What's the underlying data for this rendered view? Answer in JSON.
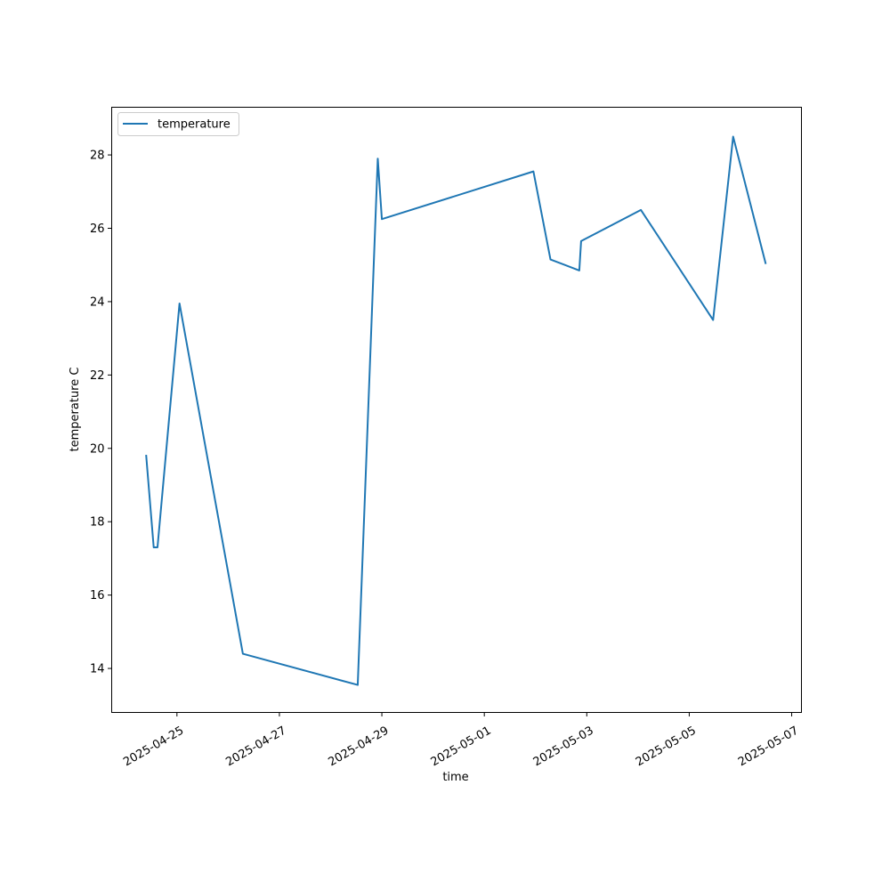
{
  "chart_data": {
    "type": "line",
    "xlabel": "time",
    "ylabel": "temperature C",
    "grid": false,
    "legend_position": "top-left",
    "x_ticks": [
      "2025-04-25",
      "2025-04-27",
      "2025-04-29",
      "2025-05-01",
      "2025-05-03",
      "2025-05-05",
      "2025-05-07"
    ],
    "y_ticks": [
      "14",
      "16",
      "18",
      "20",
      "22",
      "24",
      "26",
      "28"
    ],
    "xlim": [
      "2025-04-23 17:26",
      "2025-05-07 04:34"
    ],
    "ylim": [
      12.8,
      29.3
    ],
    "series": [
      {
        "name": "temperature",
        "color": "#1f77b4",
        "points": [
          {
            "x": "2025-04-24 09:36",
            "y": 19.8
          },
          {
            "x": "2025-04-24 13:07",
            "y": 17.3
          },
          {
            "x": "2025-04-24 14:53",
            "y": 17.3
          },
          {
            "x": "2025-04-25 01:12",
            "y": 23.95
          },
          {
            "x": "2025-04-26 06:53",
            "y": 14.4
          },
          {
            "x": "2025-04-28 12:42",
            "y": 13.55
          },
          {
            "x": "2025-04-28 22:05",
            "y": 27.9
          },
          {
            "x": "2025-04-29 00:00",
            "y": 26.25
          },
          {
            "x": "2025-05-01 23:00",
            "y": 27.55
          },
          {
            "x": "2025-05-02 07:00",
            "y": 25.15
          },
          {
            "x": "2025-05-02 20:30",
            "y": 24.85
          },
          {
            "x": "2025-05-02 21:20",
            "y": 25.65
          },
          {
            "x": "2025-05-04 01:22",
            "y": 26.5
          },
          {
            "x": "2025-05-05 11:11",
            "y": 23.5
          },
          {
            "x": "2025-05-05 20:34",
            "y": 28.5
          },
          {
            "x": "2025-05-06 11:45",
            "y": 25.05
          }
        ]
      }
    ]
  }
}
